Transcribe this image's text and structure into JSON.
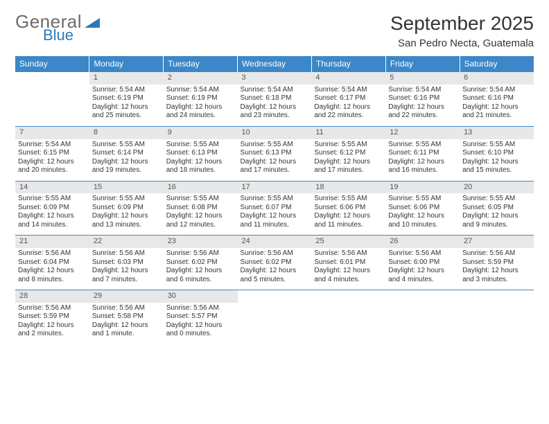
{
  "logo": {
    "general": "General",
    "blue": "Blue"
  },
  "title": "September 2025",
  "subtitle": "San Pedro Necta, Guatemala",
  "colors": {
    "header_bg": "#3b87c8",
    "header_text": "#ffffff",
    "daynum_bg": "#e8e8e8",
    "daynum_text": "#555555",
    "border": "#3b87c8",
    "body_text": "#333333",
    "logo_gray": "#6b6b6b",
    "logo_blue": "#2e77b8"
  },
  "weekdays": [
    "Sunday",
    "Monday",
    "Tuesday",
    "Wednesday",
    "Thursday",
    "Friday",
    "Saturday"
  ],
  "weeks": [
    [
      null,
      {
        "n": "1",
        "sr": "Sunrise: 5:54 AM",
        "ss": "Sunset: 6:19 PM",
        "d1": "Daylight: 12 hours",
        "d2": "and 25 minutes."
      },
      {
        "n": "2",
        "sr": "Sunrise: 5:54 AM",
        "ss": "Sunset: 6:19 PM",
        "d1": "Daylight: 12 hours",
        "d2": "and 24 minutes."
      },
      {
        "n": "3",
        "sr": "Sunrise: 5:54 AM",
        "ss": "Sunset: 6:18 PM",
        "d1": "Daylight: 12 hours",
        "d2": "and 23 minutes."
      },
      {
        "n": "4",
        "sr": "Sunrise: 5:54 AM",
        "ss": "Sunset: 6:17 PM",
        "d1": "Daylight: 12 hours",
        "d2": "and 22 minutes."
      },
      {
        "n": "5",
        "sr": "Sunrise: 5:54 AM",
        "ss": "Sunset: 6:16 PM",
        "d1": "Daylight: 12 hours",
        "d2": "and 22 minutes."
      },
      {
        "n": "6",
        "sr": "Sunrise: 5:54 AM",
        "ss": "Sunset: 6:16 PM",
        "d1": "Daylight: 12 hours",
        "d2": "and 21 minutes."
      }
    ],
    [
      {
        "n": "7",
        "sr": "Sunrise: 5:54 AM",
        "ss": "Sunset: 6:15 PM",
        "d1": "Daylight: 12 hours",
        "d2": "and 20 minutes."
      },
      {
        "n": "8",
        "sr": "Sunrise: 5:55 AM",
        "ss": "Sunset: 6:14 PM",
        "d1": "Daylight: 12 hours",
        "d2": "and 19 minutes."
      },
      {
        "n": "9",
        "sr": "Sunrise: 5:55 AM",
        "ss": "Sunset: 6:13 PM",
        "d1": "Daylight: 12 hours",
        "d2": "and 18 minutes."
      },
      {
        "n": "10",
        "sr": "Sunrise: 5:55 AM",
        "ss": "Sunset: 6:13 PM",
        "d1": "Daylight: 12 hours",
        "d2": "and 17 minutes."
      },
      {
        "n": "11",
        "sr": "Sunrise: 5:55 AM",
        "ss": "Sunset: 6:12 PM",
        "d1": "Daylight: 12 hours",
        "d2": "and 17 minutes."
      },
      {
        "n": "12",
        "sr": "Sunrise: 5:55 AM",
        "ss": "Sunset: 6:11 PM",
        "d1": "Daylight: 12 hours",
        "d2": "and 16 minutes."
      },
      {
        "n": "13",
        "sr": "Sunrise: 5:55 AM",
        "ss": "Sunset: 6:10 PM",
        "d1": "Daylight: 12 hours",
        "d2": "and 15 minutes."
      }
    ],
    [
      {
        "n": "14",
        "sr": "Sunrise: 5:55 AM",
        "ss": "Sunset: 6:09 PM",
        "d1": "Daylight: 12 hours",
        "d2": "and 14 minutes."
      },
      {
        "n": "15",
        "sr": "Sunrise: 5:55 AM",
        "ss": "Sunset: 6:09 PM",
        "d1": "Daylight: 12 hours",
        "d2": "and 13 minutes."
      },
      {
        "n": "16",
        "sr": "Sunrise: 5:55 AM",
        "ss": "Sunset: 6:08 PM",
        "d1": "Daylight: 12 hours",
        "d2": "and 12 minutes."
      },
      {
        "n": "17",
        "sr": "Sunrise: 5:55 AM",
        "ss": "Sunset: 6:07 PM",
        "d1": "Daylight: 12 hours",
        "d2": "and 11 minutes."
      },
      {
        "n": "18",
        "sr": "Sunrise: 5:55 AM",
        "ss": "Sunset: 6:06 PM",
        "d1": "Daylight: 12 hours",
        "d2": "and 11 minutes."
      },
      {
        "n": "19",
        "sr": "Sunrise: 5:55 AM",
        "ss": "Sunset: 6:06 PM",
        "d1": "Daylight: 12 hours",
        "d2": "and 10 minutes."
      },
      {
        "n": "20",
        "sr": "Sunrise: 5:55 AM",
        "ss": "Sunset: 6:05 PM",
        "d1": "Daylight: 12 hours",
        "d2": "and 9 minutes."
      }
    ],
    [
      {
        "n": "21",
        "sr": "Sunrise: 5:56 AM",
        "ss": "Sunset: 6:04 PM",
        "d1": "Daylight: 12 hours",
        "d2": "and 8 minutes."
      },
      {
        "n": "22",
        "sr": "Sunrise: 5:56 AM",
        "ss": "Sunset: 6:03 PM",
        "d1": "Daylight: 12 hours",
        "d2": "and 7 minutes."
      },
      {
        "n": "23",
        "sr": "Sunrise: 5:56 AM",
        "ss": "Sunset: 6:02 PM",
        "d1": "Daylight: 12 hours",
        "d2": "and 6 minutes."
      },
      {
        "n": "24",
        "sr": "Sunrise: 5:56 AM",
        "ss": "Sunset: 6:02 PM",
        "d1": "Daylight: 12 hours",
        "d2": "and 5 minutes."
      },
      {
        "n": "25",
        "sr": "Sunrise: 5:56 AM",
        "ss": "Sunset: 6:01 PM",
        "d1": "Daylight: 12 hours",
        "d2": "and 4 minutes."
      },
      {
        "n": "26",
        "sr": "Sunrise: 5:56 AM",
        "ss": "Sunset: 6:00 PM",
        "d1": "Daylight: 12 hours",
        "d2": "and 4 minutes."
      },
      {
        "n": "27",
        "sr": "Sunrise: 5:56 AM",
        "ss": "Sunset: 5:59 PM",
        "d1": "Daylight: 12 hours",
        "d2": "and 3 minutes."
      }
    ],
    [
      {
        "n": "28",
        "sr": "Sunrise: 5:56 AM",
        "ss": "Sunset: 5:59 PM",
        "d1": "Daylight: 12 hours",
        "d2": "and 2 minutes."
      },
      {
        "n": "29",
        "sr": "Sunrise: 5:56 AM",
        "ss": "Sunset: 5:58 PM",
        "d1": "Daylight: 12 hours",
        "d2": "and 1 minute."
      },
      {
        "n": "30",
        "sr": "Sunrise: 5:56 AM",
        "ss": "Sunset: 5:57 PM",
        "d1": "Daylight: 12 hours",
        "d2": "and 0 minutes."
      },
      null,
      null,
      null,
      null
    ]
  ]
}
